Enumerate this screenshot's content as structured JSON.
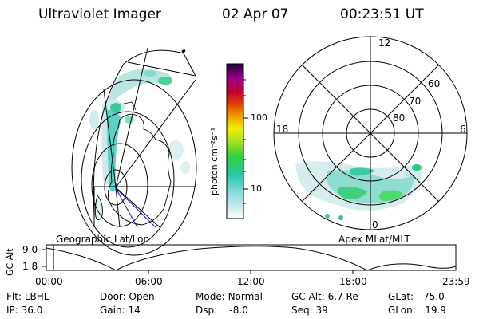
{
  "header": {
    "instrument": "Ultraviolet Imager",
    "date": "02 Apr 07",
    "time": "00:23:51 UT"
  },
  "colorbar": {
    "unit_label": "photon cm⁻²s⁻¹",
    "ticks": [
      "100",
      "10"
    ],
    "scale": "log"
  },
  "polar_grid": {
    "hour_labels": [
      "12",
      "18",
      "6",
      "0"
    ],
    "lat_labels": [
      "60",
      "70",
      "80"
    ]
  },
  "map_labels": {
    "left": "Geographic Lat/Lon",
    "right": "Apex MLat/MLT"
  },
  "orbit_plot": {
    "ylabel": "GC Alt",
    "y_ticks": [
      "9.0",
      "1.8"
    ],
    "x_ticks": [
      "00:00",
      "06:00",
      "12:00",
      "18:00",
      "23:59"
    ],
    "current_marker_color": "#e00000"
  },
  "status": {
    "row1": [
      {
        "label": "Flt:",
        "value": "LBHL"
      },
      {
        "label": "Door:",
        "value": "Open"
      },
      {
        "label": "Mode:",
        "value": "Normal"
      },
      {
        "label": "GC Alt:",
        "value": "6.7 Re"
      },
      {
        "label": "GLat:",
        "value": "-75.0"
      }
    ],
    "row2": [
      {
        "label": "IP:",
        "value": "36.0"
      },
      {
        "label": "Gain:",
        "value": "14"
      },
      {
        "label": "Dsp:",
        "value": "-8.0"
      },
      {
        "label": "Seq:",
        "value": "39"
      },
      {
        "label": "GLon:",
        "value": "19.9"
      }
    ]
  }
}
